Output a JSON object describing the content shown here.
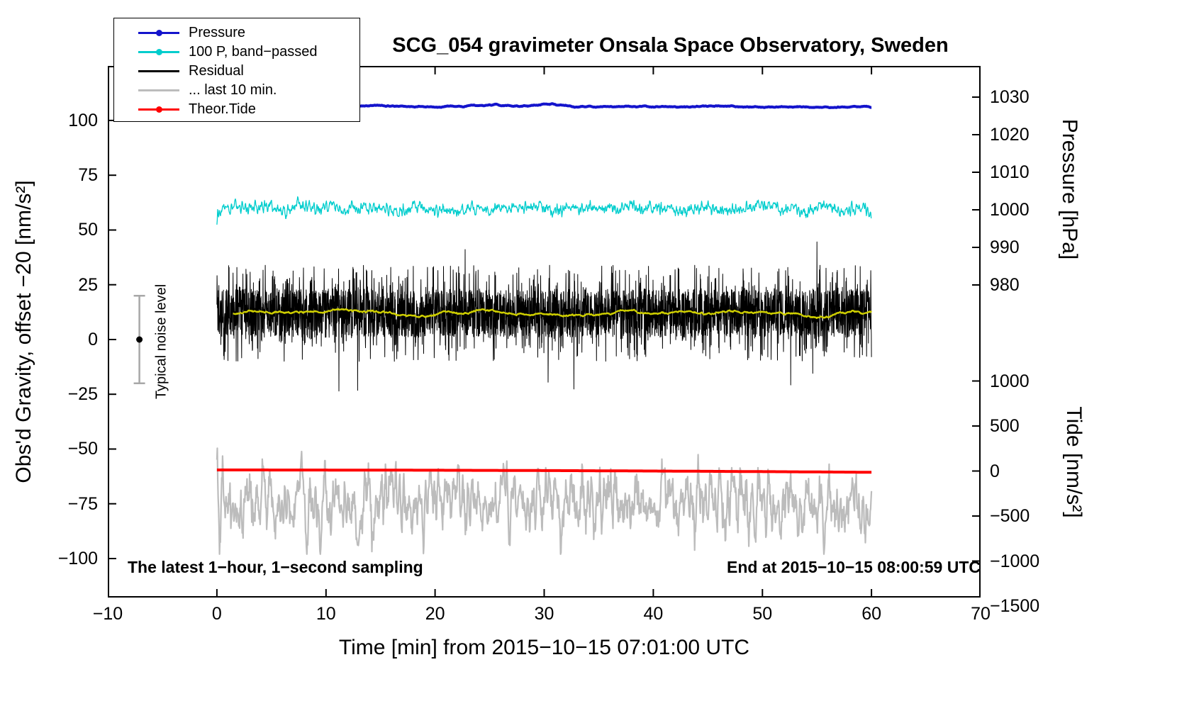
{
  "title": "SCG_054 gravimeter Onsala Space Observatory, Sweden",
  "annotations": {
    "sampling_note": "The latest 1−hour, 1−second sampling",
    "end_note": "End at 2015−10−15 08:00:59 UTC",
    "noise_label": "Typical noise level"
  },
  "axes": {
    "x": {
      "label": "Time [min] from 2015−10−15 07:01:00 UTC",
      "range": [
        -10,
        70
      ],
      "ticks": [
        -10,
        0,
        10,
        20,
        30,
        40,
        50,
        60,
        70
      ],
      "tick_labels": [
        "−10",
        "0",
        "10",
        "20",
        "30",
        "40",
        "50",
        "60",
        "70"
      ]
    },
    "y_left": {
      "label": "Obs'd Gravity, offset −20 [nm/s²]",
      "range": [
        -117.8,
        124.9
      ],
      "ticks": [
        100,
        75,
        50,
        25,
        0,
        -25,
        -50,
        -75,
        -100
      ],
      "tick_labels": [
        "100",
        "75",
        "50",
        "25",
        "0",
        "−25",
        "−50",
        "−75",
        "−100"
      ]
    },
    "y_right_pressure": {
      "label": "Pressure [hPa]",
      "range": [
        896.8,
        1038.3
      ],
      "ticks": [
        1030,
        1020,
        1010,
        1000,
        990,
        980
      ],
      "tick_labels": [
        "1030",
        "1020",
        "1010",
        "1000",
        "990",
        "980"
      ]
    },
    "y_right_tide": {
      "label": "Tide [nm/s²]",
      "range": [
        -1405.5,
        4500
      ],
      "ticks": [
        1000,
        500,
        0,
        -500,
        -1000,
        -1500
      ],
      "tick_labels": [
        "1000",
        "500",
        "0",
        "−500",
        "−1000",
        "−1500"
      ]
    }
  },
  "legend": [
    {
      "label": "Pressure",
      "color": "#1414cc",
      "marker": "dot-line"
    },
    {
      "label": "100 P, band−passed",
      "color": "#00cdcd",
      "marker": "dot-line"
    },
    {
      "label": "Residual",
      "color": "#000000",
      "marker": "line"
    },
    {
      "label": "... last 10 min.",
      "color": "#bcbcbc",
      "marker": "line"
    },
    {
      "label": "Theor.Tide",
      "color": "#ff0000",
      "marker": "dot-line"
    }
  ],
  "chart_data": {
    "type": "line",
    "title": "SCG_054 gravimeter Onsala Space Observatory, Sweden",
    "xlabel": "Time [min] from 2015−10−15 07:01:00 UTC",
    "x_range_min": [
      0,
      60
    ],
    "sampling": "1-second samples over the latest 1 hour",
    "series": [
      {
        "id": "bandpassed-pressure",
        "name": "100 P, band−passed",
        "axis": "left",
        "gen": "bandpassed",
        "points": 1800,
        "mean": 59.8,
        "amp": 1.5,
        "color": "#00cdcd",
        "width": 1.3,
        "units": "nm/s² (left gravity axis)"
      },
      {
        "id": "residual",
        "name": "Residual",
        "axis": "left",
        "gen": "residual",
        "points": 3600,
        "mean": 12,
        "spread": 11,
        "wide_spread": 22,
        "spike": 36,
        "color": "#000000",
        "width": 1,
        "units": "nm/s² (left gravity axis)"
      },
      {
        "id": "residual-smoothed",
        "name": "Residual running mean",
        "axis": "left",
        "gen": "residual-smooth",
        "mean": 12,
        "color": "#cfcf00",
        "width": 2.2,
        "units": "nm/s² (left gravity axis)"
      },
      {
        "id": "last-10-min",
        "name": "... last 10 min.",
        "axis": "left",
        "gen": "oscillation",
        "points": 1500,
        "mean": -74.5,
        "amp": 13,
        "clamp": [
          -98,
          -47
        ],
        "color": "#bcbcbc",
        "width": 2.2,
        "units": "nm/s² (left gravity axis)"
      },
      {
        "id": "theor-tide",
        "name": "Theor.Tide",
        "axis": "tide",
        "gen": "tide",
        "points": 400,
        "start": 12,
        "end": -14,
        "bulge": 6,
        "color": "#ff0000",
        "width": 4,
        "units": "nm/s² (right tide axis)"
      },
      {
        "id": "pressure",
        "name": "Pressure",
        "axis": "pressure",
        "gen": "smooth-flat",
        "points": 900,
        "mean": 1027.4,
        "wiggle": 0.22,
        "color": "#1414cc",
        "width": 4,
        "units": "hPa (right pressure axis)"
      }
    ],
    "noise_level_marker": {
      "x_min": -7.1,
      "center_value": 0,
      "half_range": 20,
      "bar_color": "#a8a8a8",
      "dot_color": "#000000"
    }
  }
}
